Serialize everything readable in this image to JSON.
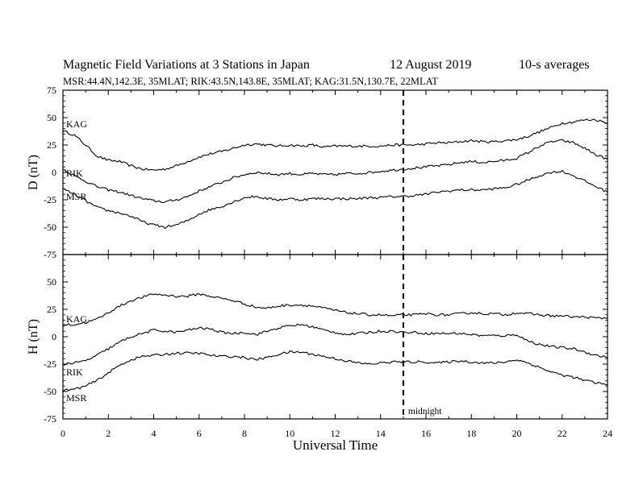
{
  "header": {
    "title": "Magnetic Field Variations at 3 Stations in Japan",
    "date": "12  August  2019",
    "averaging": "10-s averages",
    "stations_line": "MSR:44.4N,142.3E, 35MLAT;  RIK:43.5N,143.8E, 35MLAT;  KAG:31.5N,130.7E, 22MLAT"
  },
  "chart_data": [
    {
      "type": "line",
      "panel": "top",
      "ylabel": "D (nT)",
      "xlim": [
        0,
        24
      ],
      "ylim": [
        -75,
        75
      ],
      "yticks": [
        75,
        50,
        25,
        0,
        -25,
        -50,
        -75
      ],
      "grid": false,
      "marker_line": {
        "x": 15,
        "label": ""
      },
      "series": [
        {
          "name": "KAG",
          "x": [
            0,
            0.5,
            1,
            1.5,
            2,
            2.5,
            3,
            3.5,
            4,
            4.5,
            5,
            5.5,
            6,
            6.5,
            7,
            7.5,
            8,
            8.5,
            9,
            9.5,
            10,
            10.5,
            11,
            11.5,
            12,
            12.5,
            13,
            13.5,
            14,
            14.5,
            15,
            15.5,
            16,
            16.5,
            17,
            17.5,
            18,
            18.5,
            19,
            19.5,
            20,
            20.5,
            21,
            21.5,
            22,
            22.5,
            23,
            23.5,
            24
          ],
          "y": [
            38,
            34,
            25,
            15,
            11,
            10,
            6,
            3,
            2,
            3,
            6,
            10,
            14,
            17,
            19,
            22,
            25,
            26,
            25,
            24,
            25,
            24,
            25,
            23,
            24,
            24,
            24,
            24,
            24,
            25,
            25,
            25,
            26,
            27,
            27,
            28,
            29,
            28,
            28,
            29,
            30,
            33,
            37,
            41,
            45,
            46,
            48,
            48,
            45
          ]
        },
        {
          "name": "RIK",
          "x": [
            0,
            0.5,
            1,
            1.5,
            2,
            2.5,
            3,
            3.5,
            4,
            4.5,
            5,
            5.5,
            6,
            6.5,
            7,
            7.5,
            8,
            8.5,
            9,
            9.5,
            10,
            10.5,
            11,
            11.5,
            12,
            12.5,
            13,
            13.5,
            14,
            14.5,
            15,
            15.5,
            16,
            16.5,
            17,
            17.5,
            18,
            18.5,
            19,
            19.5,
            20,
            20.5,
            21,
            21.5,
            22,
            22.5,
            23,
            23.5,
            24
          ],
          "y": [
            3,
            -3,
            -8,
            -13,
            -16,
            -18,
            -21,
            -24,
            -26,
            -27,
            -25,
            -22,
            -17,
            -13,
            -9,
            -5,
            -2,
            0,
            -1,
            -2,
            -1,
            -2,
            -1,
            -2,
            -2,
            -1,
            -1,
            0,
            1,
            2,
            3,
            4,
            5,
            6,
            7,
            9,
            10,
            9,
            10,
            11,
            13,
            18,
            24,
            28,
            29,
            27,
            22,
            16,
            12
          ]
        },
        {
          "name": "MSR",
          "x": [
            0,
            0.5,
            1,
            1.5,
            2,
            2.5,
            3,
            3.5,
            4,
            4.5,
            5,
            5.5,
            6,
            6.5,
            7,
            7.5,
            8,
            8.5,
            9,
            9.5,
            10,
            10.5,
            11,
            11.5,
            12,
            12.5,
            13,
            13.5,
            14,
            14.5,
            15,
            15.5,
            16,
            16.5,
            17,
            17.5,
            18,
            18.5,
            19,
            19.5,
            20,
            20.5,
            21,
            21.5,
            22,
            22.5,
            23,
            23.5,
            24
          ],
          "y": [
            -15,
            -20,
            -26,
            -32,
            -35,
            -37,
            -40,
            -45,
            -48,
            -50,
            -48,
            -44,
            -38,
            -34,
            -31,
            -27,
            -23,
            -22,
            -24,
            -25,
            -24,
            -25,
            -24,
            -24,
            -24,
            -24,
            -24,
            -23,
            -23,
            -22,
            -22,
            -21,
            -20,
            -18,
            -17,
            -16,
            -16,
            -16,
            -15,
            -14,
            -11,
            -7,
            -3,
            0,
            1,
            -3,
            -8,
            -13,
            -18
          ]
        }
      ]
    },
    {
      "type": "line",
      "panel": "bottom",
      "ylabel": "H (nT)",
      "xlabel": "Universal Time",
      "xlim": [
        0,
        24
      ],
      "ylim": [
        -75,
        75
      ],
      "xticks": [
        0,
        2,
        4,
        6,
        8,
        10,
        12,
        14,
        16,
        18,
        20,
        22,
        24
      ],
      "yticks": [
        75,
        50,
        25,
        0,
        -25,
        -50,
        -75
      ],
      "grid": false,
      "marker_line": {
        "x": 15,
        "label": "midnight"
      },
      "series": [
        {
          "name": "KAG",
          "x": [
            0,
            0.5,
            1,
            1.5,
            2,
            2.5,
            3,
            3.5,
            4,
            4.5,
            5,
            5.5,
            6,
            6.5,
            7,
            7.5,
            8,
            8.5,
            9,
            9.5,
            10,
            10.5,
            11,
            11.5,
            12,
            12.5,
            13,
            13.5,
            14,
            14.5,
            15,
            15.5,
            16,
            16.5,
            17,
            17.5,
            18,
            18.5,
            19,
            19.5,
            20,
            20.5,
            21,
            21.5,
            22,
            22.5,
            23,
            23.5,
            24
          ],
          "y": [
            11,
            11,
            13,
            16,
            22,
            28,
            33,
            36,
            39,
            38,
            37,
            37,
            39,
            37,
            35,
            33,
            30,
            27,
            26,
            28,
            29,
            29,
            28,
            26,
            24,
            22,
            21,
            20,
            20,
            19,
            20,
            20,
            21,
            20,
            20,
            21,
            22,
            21,
            21,
            20,
            22,
            21,
            20,
            19,
            19,
            18,
            18,
            17,
            17
          ]
        },
        {
          "name": "RIK",
          "x": [
            0,
            0.5,
            1,
            1.5,
            2,
            2.5,
            3,
            3.5,
            4,
            4.5,
            5,
            5.5,
            6,
            6.5,
            7,
            7.5,
            8,
            8.5,
            9,
            9.5,
            10,
            10.5,
            11,
            11.5,
            12,
            12.5,
            13,
            13.5,
            14,
            14.5,
            15,
            15.5,
            16,
            16.5,
            17,
            17.5,
            18,
            18.5,
            19,
            19.5,
            20,
            20.5,
            21,
            21.5,
            22,
            22.5,
            23,
            23.5,
            24
          ],
          "y": [
            -25,
            -24,
            -22,
            -17,
            -11,
            -5,
            0,
            3,
            6,
            5,
            4,
            6,
            8,
            7,
            4,
            3,
            4,
            2,
            5,
            8,
            10,
            11,
            9,
            6,
            4,
            2,
            3,
            4,
            5,
            5,
            4,
            4,
            3,
            3,
            3,
            3,
            2,
            1,
            1,
            1,
            2,
            -4,
            -7,
            -9,
            -10,
            -11,
            -14,
            -17,
            -19
          ]
        },
        {
          "name": "MSR",
          "x": [
            0,
            0.5,
            1,
            1.5,
            2,
            2.5,
            3,
            3.5,
            4,
            4.5,
            5,
            5.5,
            6,
            6.5,
            7,
            7.5,
            8,
            8.5,
            9,
            9.5,
            10,
            10.5,
            11,
            11.5,
            12,
            12.5,
            13,
            13.5,
            14,
            14.5,
            15,
            15.5,
            16,
            16.5,
            17,
            17.5,
            18,
            18.5,
            19,
            19.5,
            20,
            20.5,
            21,
            21.5,
            22,
            22.5,
            23,
            23.5,
            24
          ],
          "y": [
            -49,
            -48,
            -45,
            -40,
            -33,
            -26,
            -21,
            -18,
            -17,
            -16,
            -15,
            -15,
            -15,
            -17,
            -18,
            -18,
            -19,
            -21,
            -19,
            -16,
            -14,
            -14,
            -16,
            -18,
            -20,
            -22,
            -24,
            -25,
            -24,
            -23,
            -23,
            -23,
            -23,
            -24,
            -23,
            -22,
            -23,
            -24,
            -24,
            -23,
            -21,
            -24,
            -28,
            -32,
            -35,
            -37,
            -40,
            -42,
            -44
          ]
        }
      ]
    }
  ]
}
